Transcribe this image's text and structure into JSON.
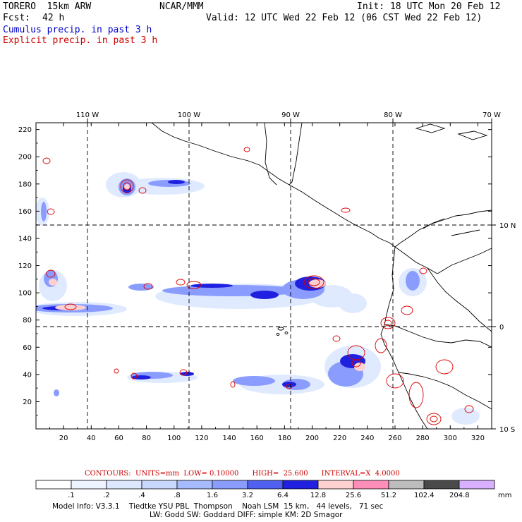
{
  "header": {
    "model": "TORERO  15km ARW",
    "center": "NCAR/MMM",
    "init": "Init: 18 UTC Mon 20 Feb 12",
    "fcst_label": "Fcst:",
    "fcst_value": "42 h",
    "valid": "Valid: 12 UTC Wed 22 Feb 12 (06 CST Wed 22 Feb 12)",
    "cumulus": "Cumulus precip. in past 3 h",
    "explicit": "Explicit precip. in past 3 h",
    "cumulus_color": "#0000cc",
    "explicit_color": "#cc0000"
  },
  "map": {
    "top_lon_labels": [
      "110 W",
      "100 W",
      "90 W",
      "80 W",
      "70 W"
    ],
    "right_lat_labels": [
      "10 N",
      "0",
      "10 S"
    ],
    "x_ticks": [
      "20",
      "40",
      "60",
      "80",
      "100",
      "120",
      "140",
      "160",
      "180",
      "200",
      "220",
      "240",
      "260",
      "280",
      "300",
      "320"
    ],
    "y_ticks": [
      "20",
      "40",
      "60",
      "80",
      "100",
      "120",
      "140",
      "160",
      "180",
      "200",
      "220"
    ]
  },
  "contour_info": "CONTOURS:  UNITS=mm  LOW= 0.10000      HIGH=  25.600      INTERVAL=X  4.0000",
  "colorbar": {
    "levels": [
      ".1",
      ".2",
      ".4",
      ".8",
      "1.6",
      "3.2",
      "6.4",
      "12.8",
      "25.6",
      "51.2",
      "102.4",
      "204.8"
    ],
    "unit": "mm",
    "colors": [
      "#ffffff",
      "#eef4ff",
      "#dde8ff",
      "#c8d8ff",
      "#a6bbff",
      "#8a9dff",
      "#5060f0",
      "#2020e0",
      "#ffd0d0",
      "#ff8fb8",
      "#bdbdbd",
      "#4a4a4a",
      "#d8b0ff"
    ]
  },
  "footer": {
    "line1": "Model Info: V3.3.1    Tiedtke YSU PBL  Thompson    Noah LSM  15 km,   44 levels,   71 sec",
    "line2": "LW: Godd SW: Goddard DIFF: simple KM: 2D Smagor"
  }
}
